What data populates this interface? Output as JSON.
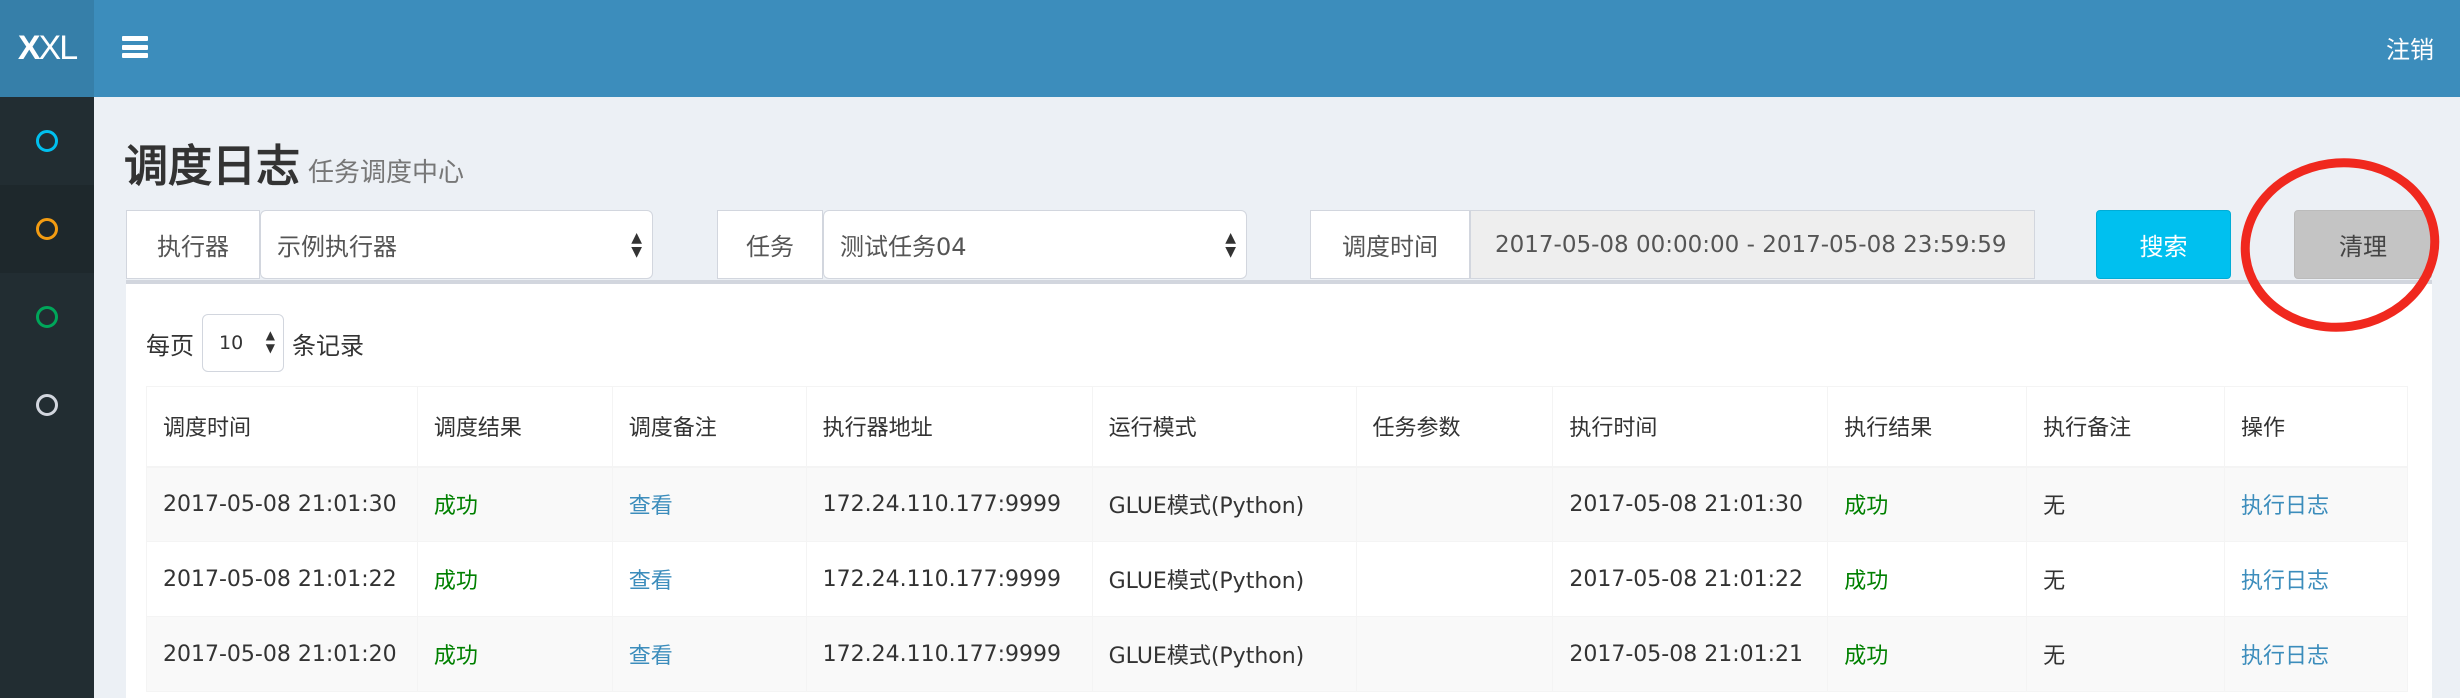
{
  "header": {
    "logo": "XXL",
    "logout": "注销",
    "menu_icon": "bars-icon",
    "color": "#3c8dbc"
  },
  "sidebar": {
    "items": [
      {
        "icon": "circle-icon",
        "color": "#00c0ef"
      },
      {
        "icon": "circle-icon",
        "color": "#f39c12",
        "active": true
      },
      {
        "icon": "circle-icon",
        "color": "#00a65a"
      },
      {
        "icon": "circle-icon",
        "color": "#d2d6de"
      }
    ]
  },
  "page": {
    "title": "调度日志",
    "subtitle": "任务调度中心"
  },
  "filters": {
    "executor_label": "执行器",
    "executor_value": "示例执行器",
    "job_label": "任务",
    "job_value": "测试任务04",
    "time_label": "调度时间",
    "time_value": "2017-05-08 00:00:00 - 2017-05-08 23:59:59",
    "search": "搜索",
    "clear": "清理"
  },
  "length": {
    "prefix": "每页",
    "value": "10",
    "suffix": "条记录"
  },
  "table": {
    "headers": [
      "调度时间",
      "调度结果",
      "调度备注",
      "执行器地址",
      "运行模式",
      "任务参数",
      "执行时间",
      "执行结果",
      "执行备注",
      "操作"
    ],
    "rows": [
      [
        "2017-05-08 21:01:30",
        "成功",
        "查看",
        "172.24.110.177:9999",
        "GLUE模式(Python)",
        "",
        "2017-05-08 21:01:30",
        "成功",
        "无",
        "执行日志"
      ],
      [
        "2017-05-08 21:01:22",
        "成功",
        "查看",
        "172.24.110.177:9999",
        "GLUE模式(Python)",
        "",
        "2017-05-08 21:01:22",
        "成功",
        "无",
        "执行日志"
      ],
      [
        "2017-05-08 21:01:20",
        "成功",
        "查看",
        "172.24.110.177:9999",
        "GLUE模式(Python)",
        "",
        "2017-05-08 21:01:21",
        "成功",
        "无",
        "执行日志"
      ]
    ]
  }
}
